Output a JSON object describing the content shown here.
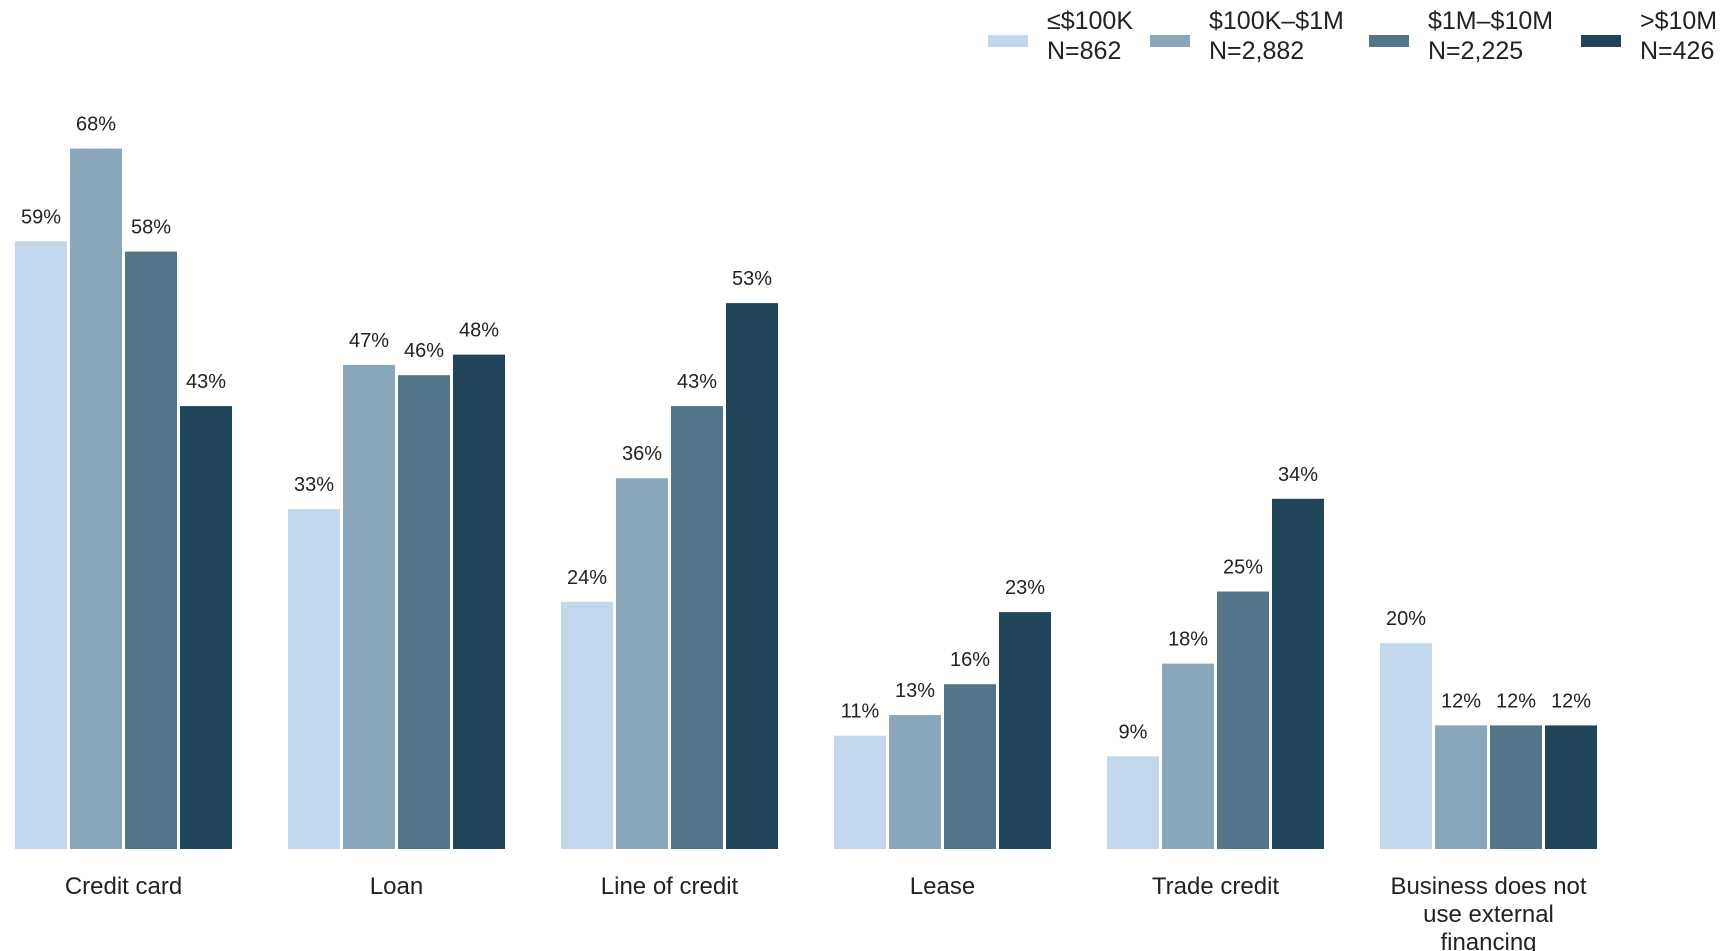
{
  "chart_data": {
    "type": "bar",
    "categories": [
      [
        "Credit card"
      ],
      [
        "Loan"
      ],
      [
        "Line of credit"
      ],
      [
        "Lease"
      ],
      [
        "Trade credit"
      ],
      [
        "Business does not",
        "use external",
        "financing"
      ]
    ],
    "series": [
      {
        "name": "≤$100K",
        "sample": "N=862",
        "color": "#c2d7eb",
        "values": [
          59,
          33,
          24,
          11,
          9,
          20
        ]
      },
      {
        "name": "$100K–$1M",
        "sample": "N=2,882",
        "color": "#8aa6bb",
        "values": [
          68,
          47,
          36,
          13,
          18,
          12
        ]
      },
      {
        "name": "$1M–$10M",
        "sample": "N=2,225",
        "color": "#527589",
        "values": [
          58,
          46,
          43,
          16,
          25,
          12
        ]
      },
      {
        "name": ">$10M",
        "sample": "N=426",
        "color": "#20455b",
        "values": [
          43,
          48,
          53,
          23,
          34,
          12
        ]
      }
    ],
    "value_suffix": "%",
    "ylim": [
      0,
      70
    ],
    "grid": false,
    "legend_position": "top-right"
  }
}
